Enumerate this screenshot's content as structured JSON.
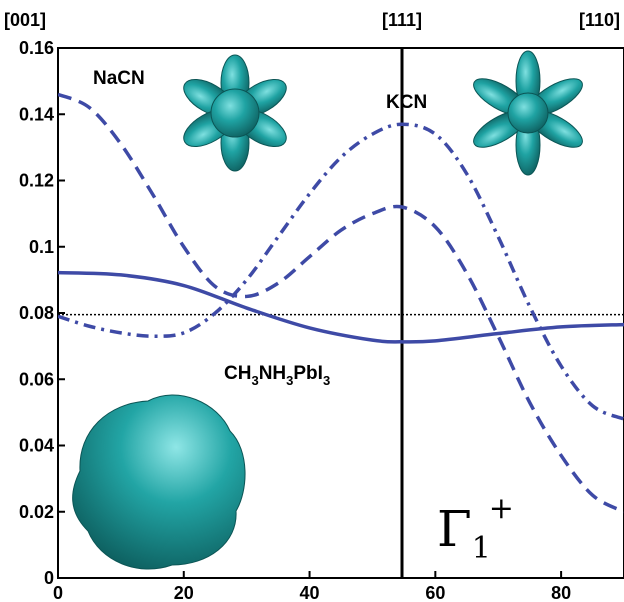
{
  "chart_data": {
    "type": "line",
    "xlim": [
      0,
      90
    ],
    "ylim": [
      0,
      0.16
    ],
    "x_ticks": [
      "0",
      "20",
      "40",
      "60",
      "80"
    ],
    "y_ticks": [
      "0",
      "0.02",
      "0.04",
      "0.06",
      "0.08",
      "0.1",
      "0.12",
      "0.14",
      "0.16"
    ],
    "top_labels": [
      {
        "text": "[001]",
        "x": 0
      },
      {
        "text": "[111]",
        "x": 54.7
      },
      {
        "text": "[110]",
        "x": 90
      }
    ],
    "vertical_line_x": 54.7,
    "reference_line_y": 0.0795,
    "annotations": {
      "nacn": "NaCN",
      "kcn": "KCN",
      "mapbi3": {
        "base1": "CH",
        "sub1": "3",
        "base2": "NH",
        "sub2": "3",
        "base3": "PbI",
        "sub3": "3"
      },
      "gamma": {
        "symbol": "Γ",
        "sub": "1",
        "sup": "+"
      }
    },
    "colors": {
      "series": "#3e4aa6",
      "teal": "#1f9a9a"
    },
    "series": [
      {
        "style": "solid",
        "x": [
          0,
          10,
          20,
          30,
          40,
          50,
          54.7,
          60,
          70,
          80,
          90
        ],
        "y": [
          0.0922,
          0.0915,
          0.0883,
          0.0815,
          0.0755,
          0.0718,
          0.0713,
          0.0716,
          0.0738,
          0.0758,
          0.0765
        ]
      },
      {
        "style": "dashed",
        "x": [
          0,
          5,
          10,
          15,
          20,
          25,
          30,
          35,
          40,
          45,
          50,
          54.7,
          60,
          65,
          70,
          75,
          80,
          85,
          90
        ],
        "y": [
          0.146,
          0.142,
          0.131,
          0.116,
          0.1,
          0.088,
          0.085,
          0.089,
          0.097,
          0.105,
          0.11,
          0.112,
          0.106,
          0.092,
          0.073,
          0.053,
          0.037,
          0.025,
          0.02
        ]
      },
      {
        "style": "dashdot",
        "x": [
          0,
          5,
          10,
          15,
          20,
          25,
          30,
          35,
          40,
          45,
          50,
          54.7,
          60,
          65,
          70,
          75,
          80,
          85,
          90
        ],
        "y": [
          0.079,
          0.076,
          0.074,
          0.073,
          0.074,
          0.08,
          0.09,
          0.103,
          0.116,
          0.127,
          0.134,
          0.137,
          0.134,
          0.122,
          0.103,
          0.082,
          0.064,
          0.052,
          0.048
        ]
      }
    ]
  }
}
